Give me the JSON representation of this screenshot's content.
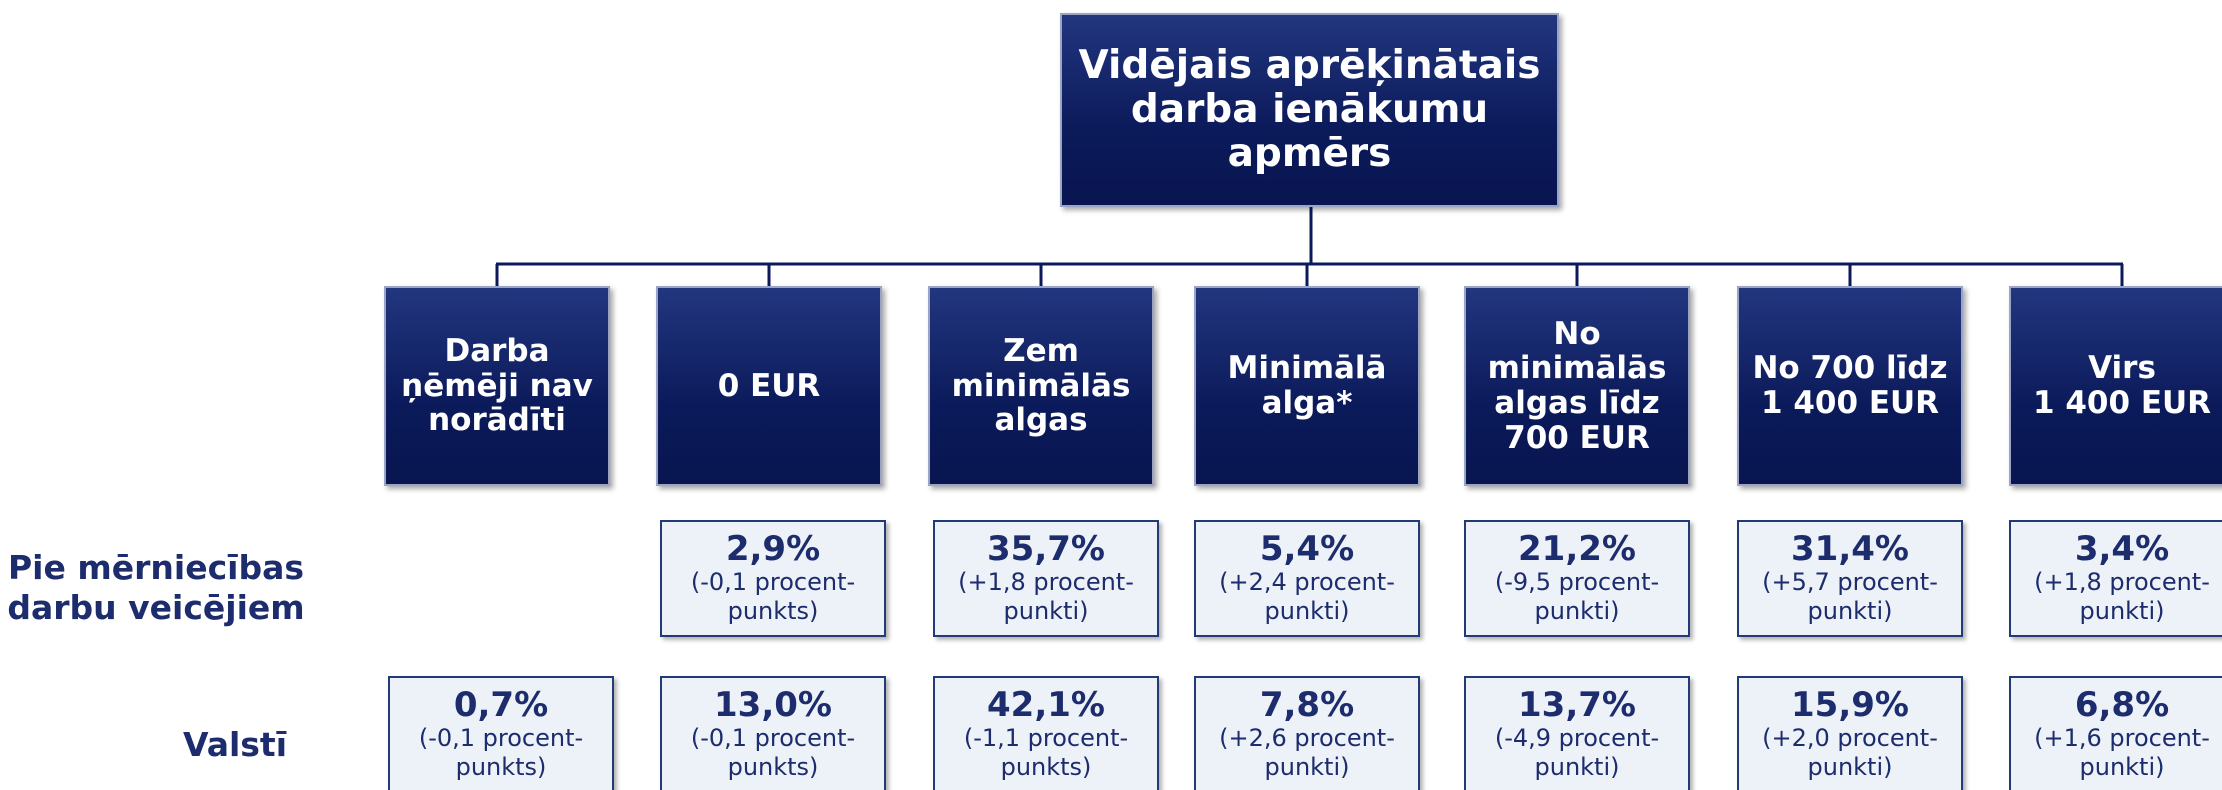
{
  "root": {
    "lines": [
      "Vidējais aprēķinātais",
      "darba ienākumu",
      "apmērs"
    ]
  },
  "row_labels": [
    [
      "Pie mērniecības",
      "darbu veicējiem"
    ],
    [
      "Valstī"
    ]
  ],
  "columns": [
    {
      "header": [
        "Darba",
        "ņēmēji nav",
        "norādīti"
      ],
      "cells": [
        null,
        {
          "value": "0,7%",
          "change": [
            "(-0,1 procent-",
            "punkts)"
          ]
        }
      ]
    },
    {
      "header": [
        "0 EUR"
      ],
      "cells": [
        {
          "value": "2,9%",
          "change": [
            "(-0,1 procent-",
            "punkts)"
          ]
        },
        {
          "value": "13,0%",
          "change": [
            "(-0,1 procent-",
            "punkts)"
          ]
        }
      ]
    },
    {
      "header": [
        "Zem",
        "minimālās",
        "algas"
      ],
      "cells": [
        {
          "value": "35,7%",
          "change": [
            "(+1,8 procent-",
            "punkti)"
          ]
        },
        {
          "value": "42,1%",
          "change": [
            "(-1,1 procent-",
            "punkts)"
          ]
        }
      ]
    },
    {
      "header": [
        "Minimālā",
        "alga*"
      ],
      "cells": [
        {
          "value": "5,4%",
          "change": [
            "(+2,4 procent-",
            "punkti)"
          ]
        },
        {
          "value": "7,8%",
          "change": [
            "(+2,6 procent-",
            "punkti)"
          ]
        }
      ]
    },
    {
      "header": [
        "No",
        "minimālās",
        "algas līdz",
        "700 EUR"
      ],
      "cells": [
        {
          "value": "21,2%",
          "change": [
            "(-9,5 procent-",
            "punkti)"
          ]
        },
        {
          "value": "13,7%",
          "change": [
            "(-4,9 procent-",
            "punkti)"
          ]
        }
      ]
    },
    {
      "header": [
        "No 700 līdz",
        "1 400 EUR"
      ],
      "cells": [
        {
          "value": "31,4%",
          "change": [
            "(+5,7 procent-",
            "punkti)"
          ]
        },
        {
          "value": "15,9%",
          "change": [
            "(+2,0 procent-",
            "punkti)"
          ]
        }
      ]
    },
    {
      "header": [
        "Virs",
        "1 400 EUR"
      ],
      "cells": [
        {
          "value": "3,4%",
          "change": [
            "(+1,8 procent-",
            "punkti)"
          ]
        },
        {
          "value": "6,8%",
          "change": [
            "(+1,6 procent-",
            "punkti)"
          ]
        }
      ]
    }
  ]
}
